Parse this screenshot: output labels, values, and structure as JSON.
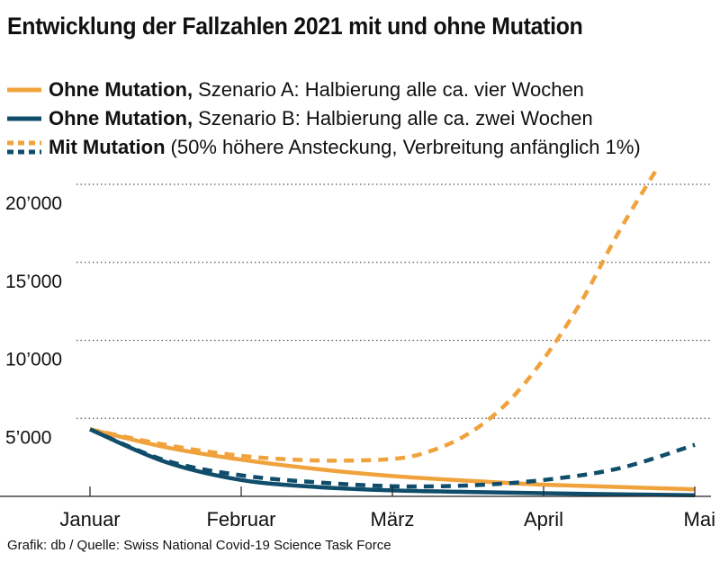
{
  "chart_data": {
    "type": "line",
    "title": "Entwicklung der Fallzahlen 2021 mit und ohne Mutation",
    "xlabel": "",
    "ylabel": "",
    "x_categories": [
      "Januar",
      "Februar",
      "März",
      "April",
      "Mai"
    ],
    "ylim": [
      0,
      20000
    ],
    "y_ticks": [
      5000,
      10000,
      15000,
      20000
    ],
    "y_tick_labels": [
      "5’000",
      "10’000",
      "15’000",
      "20’000"
    ],
    "grid": "horizontal dotted",
    "legend_position": "top-left",
    "legend": [
      {
        "bold": "Ohne Mutation,",
        "rest": "Szenario A: Halbierung alle ca. vier Wochen",
        "color": "#f0a33c",
        "dash": false
      },
      {
        "bold": "Ohne Mutation,",
        "rest": "Szenario B: Halbierung alle ca. zwei Wochen",
        "color": "#0f4d6b",
        "dash": false
      },
      {
        "bold": "Mit Mutation",
        "rest": "(50% höhere Ansteckung, Verbreitung anfänglich 1%)",
        "color": null,
        "dash": true
      }
    ],
    "series": [
      {
        "color": "#f0a33c",
        "dash": false,
        "x": [
          0,
          0.5,
          1,
          1.5,
          2,
          2.5,
          3,
          3.5,
          4
        ],
        "y": [
          4300,
          3150,
          2350,
          1750,
          1300,
          1000,
          750,
          600,
          450
        ]
      },
      {
        "color": "#0f4d6b",
        "dash": false,
        "x": [
          0,
          0.5,
          1,
          1.5,
          2,
          2.5,
          3,
          3.5,
          4
        ],
        "y": [
          4300,
          2200,
          1050,
          600,
          380,
          280,
          200,
          130,
          70
        ]
      },
      {
        "color": "#f0a33c",
        "dash": true,
        "x": [
          0,
          0.5,
          1,
          1.5,
          2,
          2.25,
          2.5,
          2.75,
          3,
          3.25,
          3.5,
          3.75
        ],
        "y": [
          4300,
          3300,
          2600,
          2300,
          2400,
          2900,
          4000,
          5900,
          8800,
          12500,
          17000,
          21000
        ]
      },
      {
        "color": "#0f4d6b",
        "dash": true,
        "x": [
          0,
          0.5,
          1,
          1.5,
          2,
          2.5,
          3,
          3.5,
          4
        ],
        "y": [
          4300,
          2300,
          1350,
          900,
          650,
          700,
          1050,
          1800,
          3300
        ]
      }
    ]
  },
  "footer": "Grafik: db / Quelle: Swiss National Covid-19 Science Task Force"
}
